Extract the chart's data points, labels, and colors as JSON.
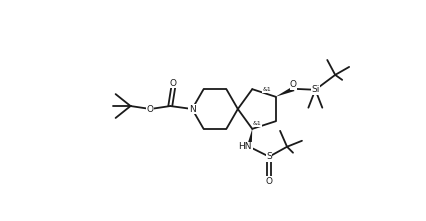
{
  "bg_color": "#ffffff",
  "line_color": "#1a1a1a",
  "lw": 1.3,
  "figsize": [
    4.26,
    2.21
  ],
  "dpi": 100,
  "xlim": [
    0,
    42.6
  ],
  "ylim": [
    0,
    22.1
  ]
}
